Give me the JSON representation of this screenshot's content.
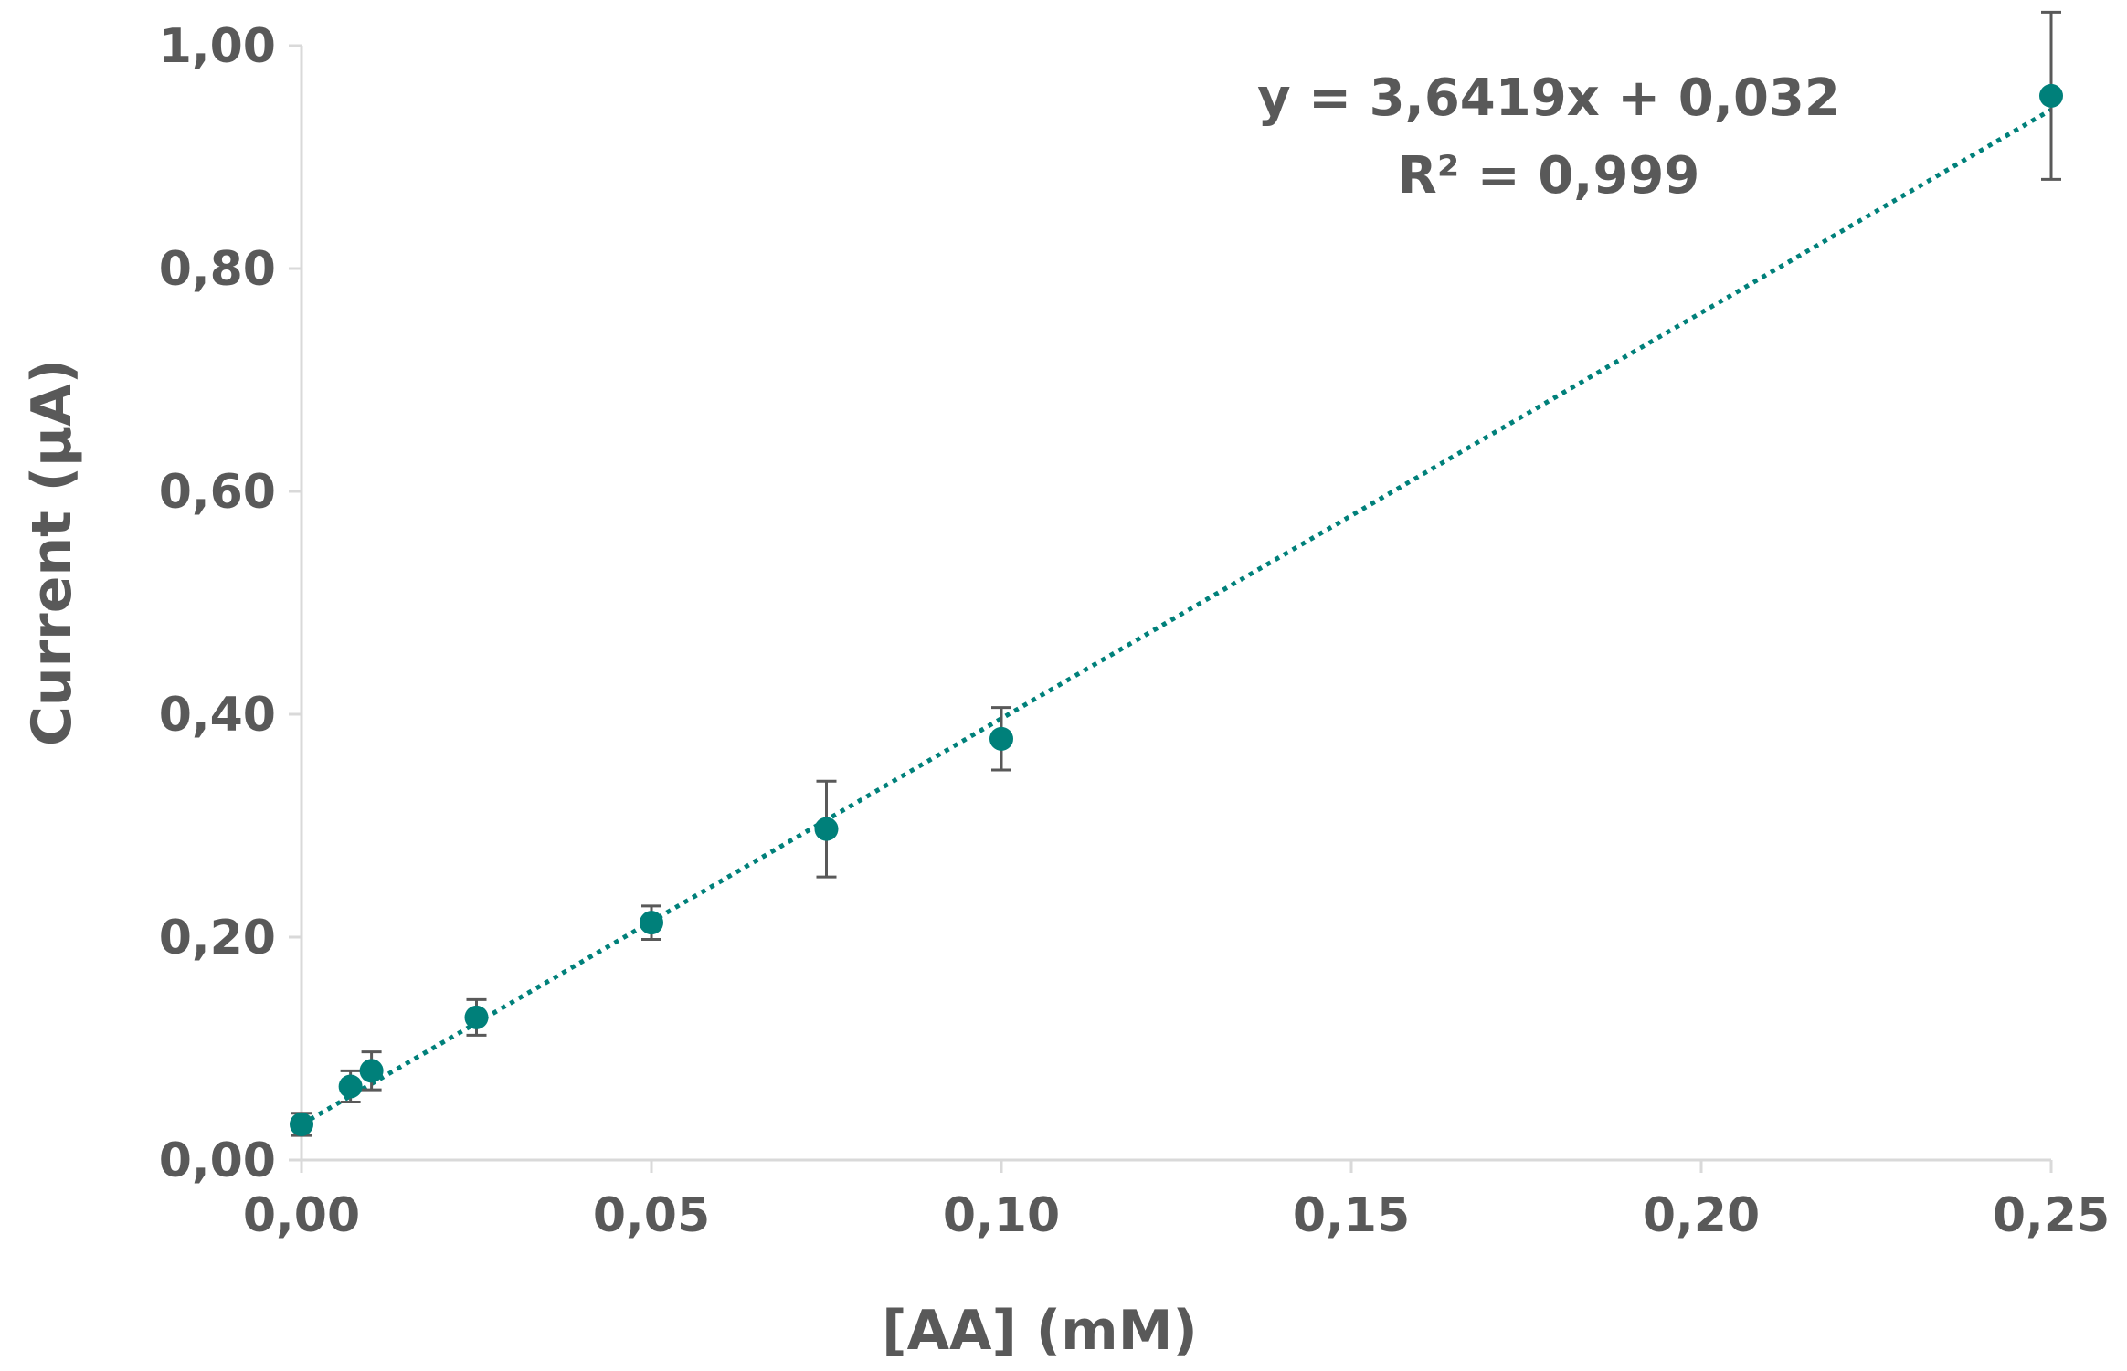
{
  "chart_data": {
    "type": "scatter",
    "title": "",
    "xlabel": "[AA] (mM)",
    "ylabel": "Current (µA)",
    "xlim": [
      0,
      0.25
    ],
    "ylim": [
      0,
      1.0
    ],
    "x_ticks": [
      0,
      0.05,
      0.1,
      0.15,
      0.2,
      0.25
    ],
    "y_ticks": [
      0,
      0.2,
      0.4,
      0.6,
      0.8,
      1.0
    ],
    "x_tick_labels": [
      "0,00",
      "0,05",
      "0,10",
      "0,15",
      "0,20",
      "0,25"
    ],
    "y_tick_labels": [
      "0,00",
      "0,20",
      "0,40",
      "0,60",
      "0,80",
      "1,00"
    ],
    "grid": false,
    "series": [
      {
        "name": "Current",
        "color": "#00807a",
        "x": [
          0,
          0.007,
          0.01,
          0.025,
          0.05,
          0.075,
          0.1,
          0.25
        ],
        "y": [
          0.032,
          0.066,
          0.08,
          0.128,
          0.213,
          0.297,
          0.378,
          0.955
        ],
        "error": [
          0.01,
          0.014,
          0.017,
          0.016,
          0.015,
          0.043,
          0.028,
          0.075
        ]
      }
    ],
    "trendline": {
      "type": "linear",
      "slope": 3.6419,
      "intercept": 0.032,
      "x_range": [
        0,
        0.25
      ],
      "style": "dotted",
      "color": "#00807a"
    },
    "annotations": [
      "y = 3,6419x + 0,032",
      "R² = 0,999"
    ],
    "axis_color": "#d9d9d9",
    "error_bar_color": "#595959"
  }
}
